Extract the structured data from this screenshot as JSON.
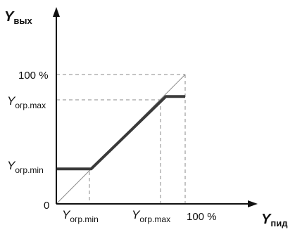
{
  "axes": {
    "y_axis": {
      "symbol": "Y",
      "subscript": "вых"
    },
    "x_axis": {
      "symbol": "Y",
      "subscript": "пид"
    },
    "origin": "0"
  },
  "labels": {
    "y_100": "100 %",
    "x_100": "100 %",
    "y_max": {
      "symbol": "Y",
      "subscript": "огр.max"
    },
    "y_min": {
      "symbol": "Y",
      "subscript": "огр.min"
    },
    "x_min": {
      "symbol": "Y",
      "subscript": "огр.min"
    },
    "x_max": {
      "symbol": "Y",
      "subscript": "огр.max"
    }
  },
  "colors": {
    "axis": "#111111",
    "curve": "#3a3a3a",
    "guides": "#8a8a8a"
  },
  "chart_data": {
    "type": "line",
    "xlim": [
      0,
      100
    ],
    "ylim": [
      0,
      100
    ],
    "series": [
      {
        "values": [
          [
            0,
            27
          ],
          [
            27,
            27
          ],
          [
            85,
            83
          ],
          [
            100,
            83
          ]
        ]
      }
    ],
    "reference_line": {
      "values": [
        [
          0,
          0
        ],
        [
          100,
          100
        ]
      ]
    }
  }
}
